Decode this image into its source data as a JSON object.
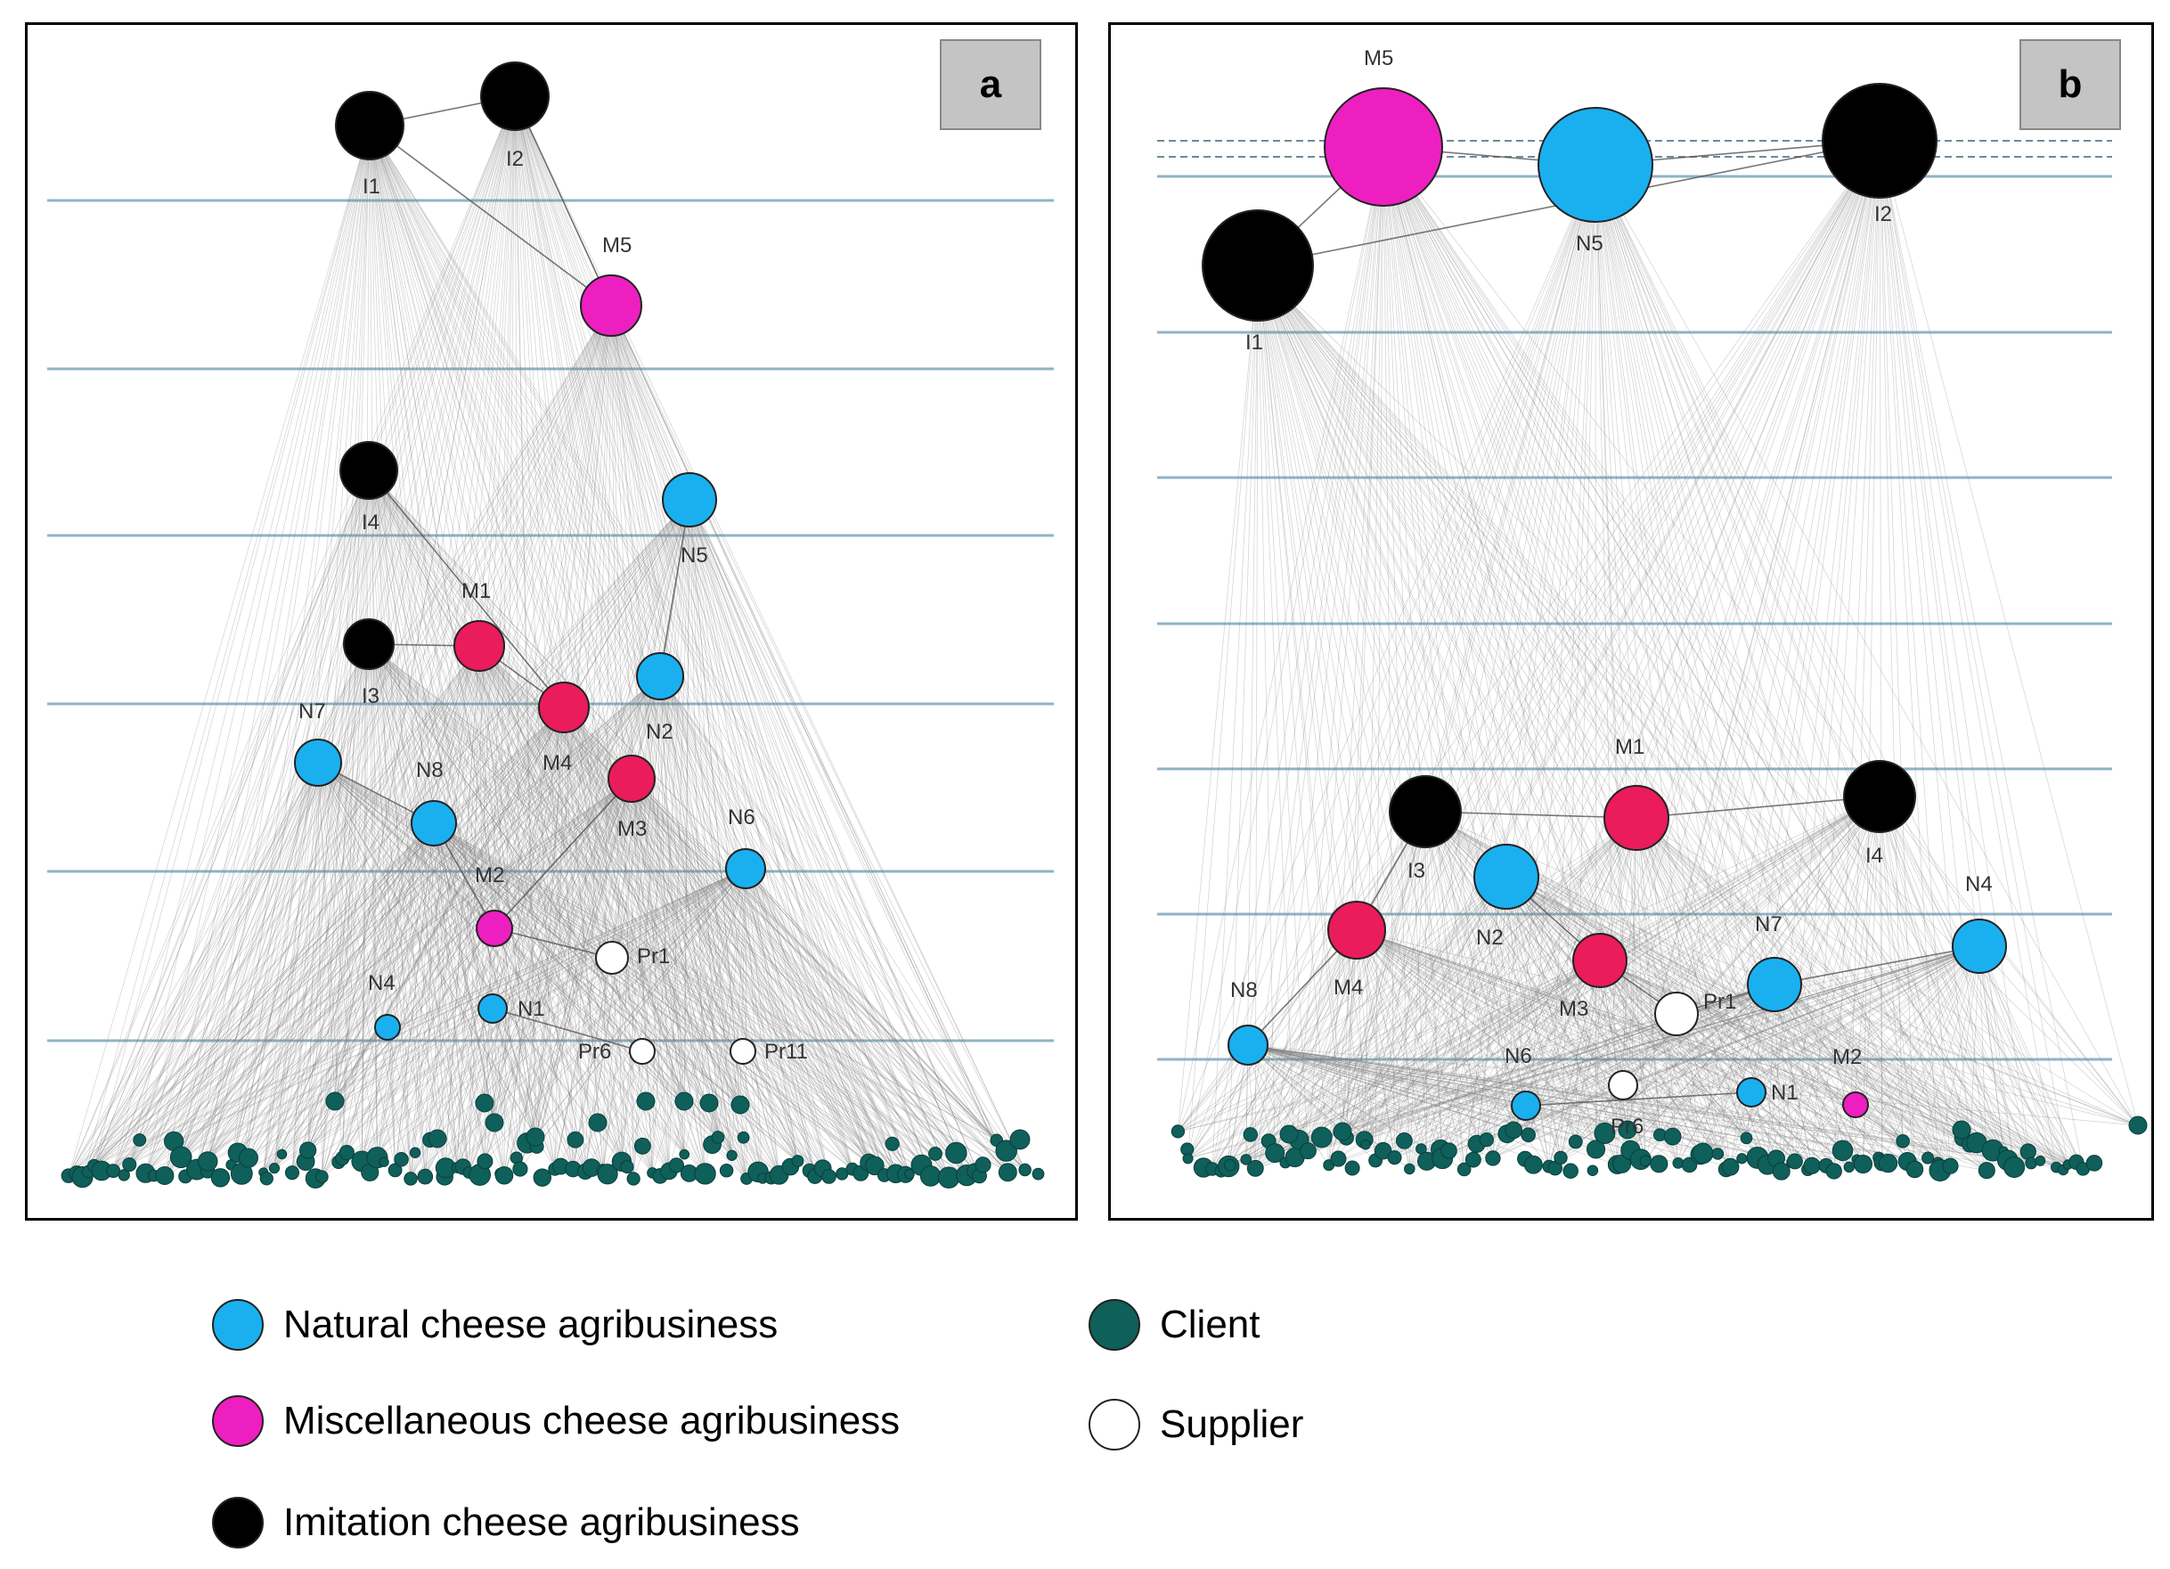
{
  "panels": [
    {
      "id": "a",
      "tag": "a",
      "nodes": [
        {
          "id": "I1",
          "label": "I1",
          "type": "imitation"
        },
        {
          "id": "I2",
          "label": "I2",
          "type": "imitation"
        },
        {
          "id": "M5",
          "label": "M5",
          "type": "miscellaneous"
        },
        {
          "id": "I4",
          "label": "I4",
          "type": "imitation"
        },
        {
          "id": "N5",
          "label": "N5",
          "type": "natural"
        },
        {
          "id": "M1",
          "label": "M1",
          "type": "miscellaneous-red"
        },
        {
          "id": "I3",
          "label": "I3",
          "type": "imitation"
        },
        {
          "id": "M4",
          "label": "M4",
          "type": "miscellaneous-red"
        },
        {
          "id": "N2",
          "label": "N2",
          "type": "natural"
        },
        {
          "id": "N7",
          "label": "N7",
          "type": "natural"
        },
        {
          "id": "M3",
          "label": "M3",
          "type": "miscellaneous-red"
        },
        {
          "id": "N8",
          "label": "N8",
          "type": "natural"
        },
        {
          "id": "N6",
          "label": "N6",
          "type": "natural"
        },
        {
          "id": "M2",
          "label": "M2",
          "type": "miscellaneous"
        },
        {
          "id": "Pr1",
          "label": "Pr1",
          "type": "supplier"
        },
        {
          "id": "N4",
          "label": "N4",
          "type": "natural"
        },
        {
          "id": "N1",
          "label": "N1",
          "type": "natural"
        },
        {
          "id": "Pr6",
          "label": "Pr6",
          "type": "supplier"
        },
        {
          "id": "Pr11",
          "label": "Pr11",
          "type": "supplier"
        }
      ]
    },
    {
      "id": "b",
      "tag": "b",
      "nodes": [
        {
          "id": "M5",
          "label": "M5",
          "type": "miscellaneous"
        },
        {
          "id": "N5",
          "label": "N5",
          "type": "natural"
        },
        {
          "id": "I2",
          "label": "I2",
          "type": "imitation"
        },
        {
          "id": "I1",
          "label": "I1",
          "type": "imitation"
        },
        {
          "id": "M1",
          "label": "M1",
          "type": "miscellaneous-red"
        },
        {
          "id": "I3",
          "label": "I3",
          "type": "imitation"
        },
        {
          "id": "I4",
          "label": "I4",
          "type": "imitation"
        },
        {
          "id": "N2",
          "label": "N2",
          "type": "natural"
        },
        {
          "id": "N4",
          "label": "N4",
          "type": "natural"
        },
        {
          "id": "M4",
          "label": "M4",
          "type": "miscellaneous-red"
        },
        {
          "id": "M3",
          "label": "M3",
          "type": "miscellaneous-red"
        },
        {
          "id": "N7",
          "label": "N7",
          "type": "natural"
        },
        {
          "id": "N8",
          "label": "N8",
          "type": "natural"
        },
        {
          "id": "Pr1",
          "label": "Pr1",
          "type": "supplier"
        },
        {
          "id": "N6",
          "label": "N6",
          "type": "natural"
        },
        {
          "id": "N1",
          "label": "N1",
          "type": "natural"
        },
        {
          "id": "M2",
          "label": "M2",
          "type": "miscellaneous"
        },
        {
          "id": "Pr6",
          "label": "Pr6",
          "type": "supplier"
        }
      ]
    }
  ],
  "colors": {
    "natural": "#1ab0f0",
    "miscellaneous": "#ee1fc0",
    "miscellaneous-red": "#ea1c5c",
    "imitation": "#000000",
    "client": "#0f5f5a",
    "supplier": "#ffffff",
    "gridline": "#8fb3c6",
    "edge": "#7a7a7a"
  },
  "legend": {
    "natural": "Natural cheese agribusiness",
    "miscellaneous": "Miscellaneous cheese agribusiness",
    "imitation": "Imitation cheese agribusiness",
    "client": "Client",
    "supplier": "Supplier"
  }
}
